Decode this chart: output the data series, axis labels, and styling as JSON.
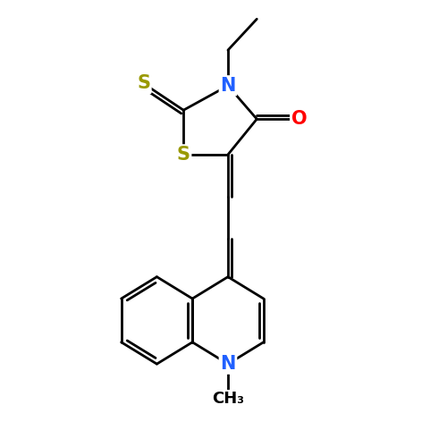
{
  "background_color": "#ffffff",
  "atom_color_N": "#2060ff",
  "atom_color_O": "#ff0000",
  "atom_color_S": "#999900",
  "atom_color_C": "#000000",
  "bond_color": "#000000",
  "bond_width": 2.0,
  "font_size_atoms": 15,
  "font_size_methyl": 13,
  "figsize": [
    5.0,
    5.0
  ],
  "dpi": 100,
  "xlim": [
    0,
    10
  ],
  "ylim": [
    0,
    10
  ]
}
